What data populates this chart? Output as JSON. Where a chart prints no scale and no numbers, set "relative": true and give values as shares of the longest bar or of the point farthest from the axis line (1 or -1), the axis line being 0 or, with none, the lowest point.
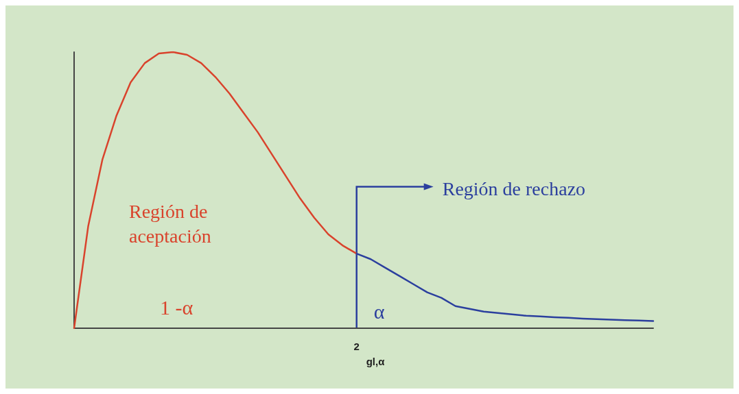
{
  "chart_data": {
    "type": "line",
    "relative": true,
    "categories": [
      null,
      null,
      null,
      null,
      null,
      null,
      null,
      null,
      null,
      null,
      null,
      null,
      null,
      null,
      null,
      null,
      null,
      null,
      null,
      null,
      null,
      null,
      null,
      null,
      null,
      null,
      null,
      null,
      null,
      null,
      null,
      null,
      null,
      null,
      null,
      null,
      null,
      null,
      null,
      null,
      null,
      null
    ],
    "series": [
      {
        "color": "#d9432c",
        "values": [
          0,
          0.37,
          0.61,
          0.77,
          0.89,
          0.96,
          0.995,
          1,
          0.99,
          0.96,
          0.91,
          0.85,
          0.78,
          0.71,
          0.63,
          0.55,
          0.47,
          0.4,
          0.34,
          0.3,
          0.27,
          null,
          null,
          null,
          null,
          null,
          null,
          null,
          null,
          null,
          null,
          null,
          null,
          null,
          null,
          null,
          null,
          null,
          null,
          null,
          null,
          null
        ]
      },
      {
        "color": "#2b3f9e",
        "values": [
          null,
          null,
          null,
          null,
          null,
          null,
          null,
          null,
          null,
          null,
          null,
          null,
          null,
          null,
          null,
          null,
          null,
          null,
          null,
          null,
          0.27,
          0.25,
          0.22,
          0.19,
          0.16,
          0.13,
          0.11,
          0.08,
          0.07,
          0.06,
          0.055,
          0.05,
          0.045,
          0.043,
          0.04,
          0.038,
          0.035,
          0.033,
          0.031,
          0.029,
          0.028,
          0.026
        ]
      }
    ],
    "annotations": [
      "Región de\naceptación",
      "1 -α",
      "Región de rechazo",
      "α",
      "2",
      "gl,α"
    ],
    "grid": false,
    "marker": "none",
    "line_style": "solid"
  }
}
